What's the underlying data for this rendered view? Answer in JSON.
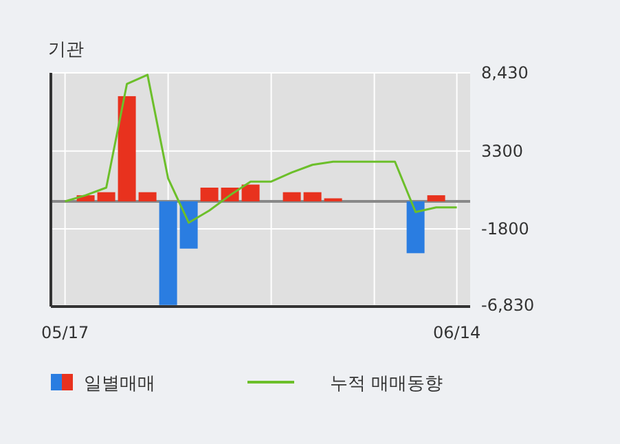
{
  "chart_data": {
    "type": "bar",
    "title": "기관",
    "categories": [
      "05/17",
      null,
      null,
      null,
      null,
      null,
      null,
      null,
      null,
      null,
      null,
      null,
      null,
      null,
      null,
      null,
      null,
      null,
      null,
      "06/14"
    ],
    "series": [
      {
        "name": "일별매매",
        "values": [
          0,
          400,
          600,
          6900,
          600,
          -6800,
          -3100,
          900,
          900,
          1100,
          0,
          600,
          600,
          200,
          0,
          0,
          0,
          -3400,
          400,
          0
        ],
        "colors": [
          "#e8321e",
          "#e8321e",
          "#e8321e",
          "#e8321e",
          "#e8321e",
          "#2a7de1",
          "#2a7de1",
          "#e8321e",
          "#e8321e",
          "#e8321e",
          "#e8321e",
          "#e8321e",
          "#e8321e",
          "#e8321e",
          "#e8321e",
          "#e8321e",
          "#e8321e",
          "#2a7de1",
          "#e8321e",
          "#e8321e"
        ]
      },
      {
        "name": "누적 매매동향",
        "type": "line",
        "color": "#6cbf2a",
        "values": [
          0,
          400,
          900,
          7700,
          8300,
          1500,
          -1400,
          -600,
          400,
          1300,
          1300,
          1900,
          2400,
          2600,
          2600,
          2600,
          2600,
          -700,
          -400,
          -400
        ]
      }
    ],
    "ylim": [
      -6900,
      8430
    ],
    "yticks": [
      {
        "value": 8430,
        "label": "8,430"
      },
      3300,
      -1800,
      {
        "value": -6830,
        "label": "-6,830"
      }
    ],
    "ref_lines": [
      {
        "axis": "y",
        "value": 0,
        "color": "#888888"
      }
    ],
    "grid": true,
    "legend": "bottom"
  }
}
